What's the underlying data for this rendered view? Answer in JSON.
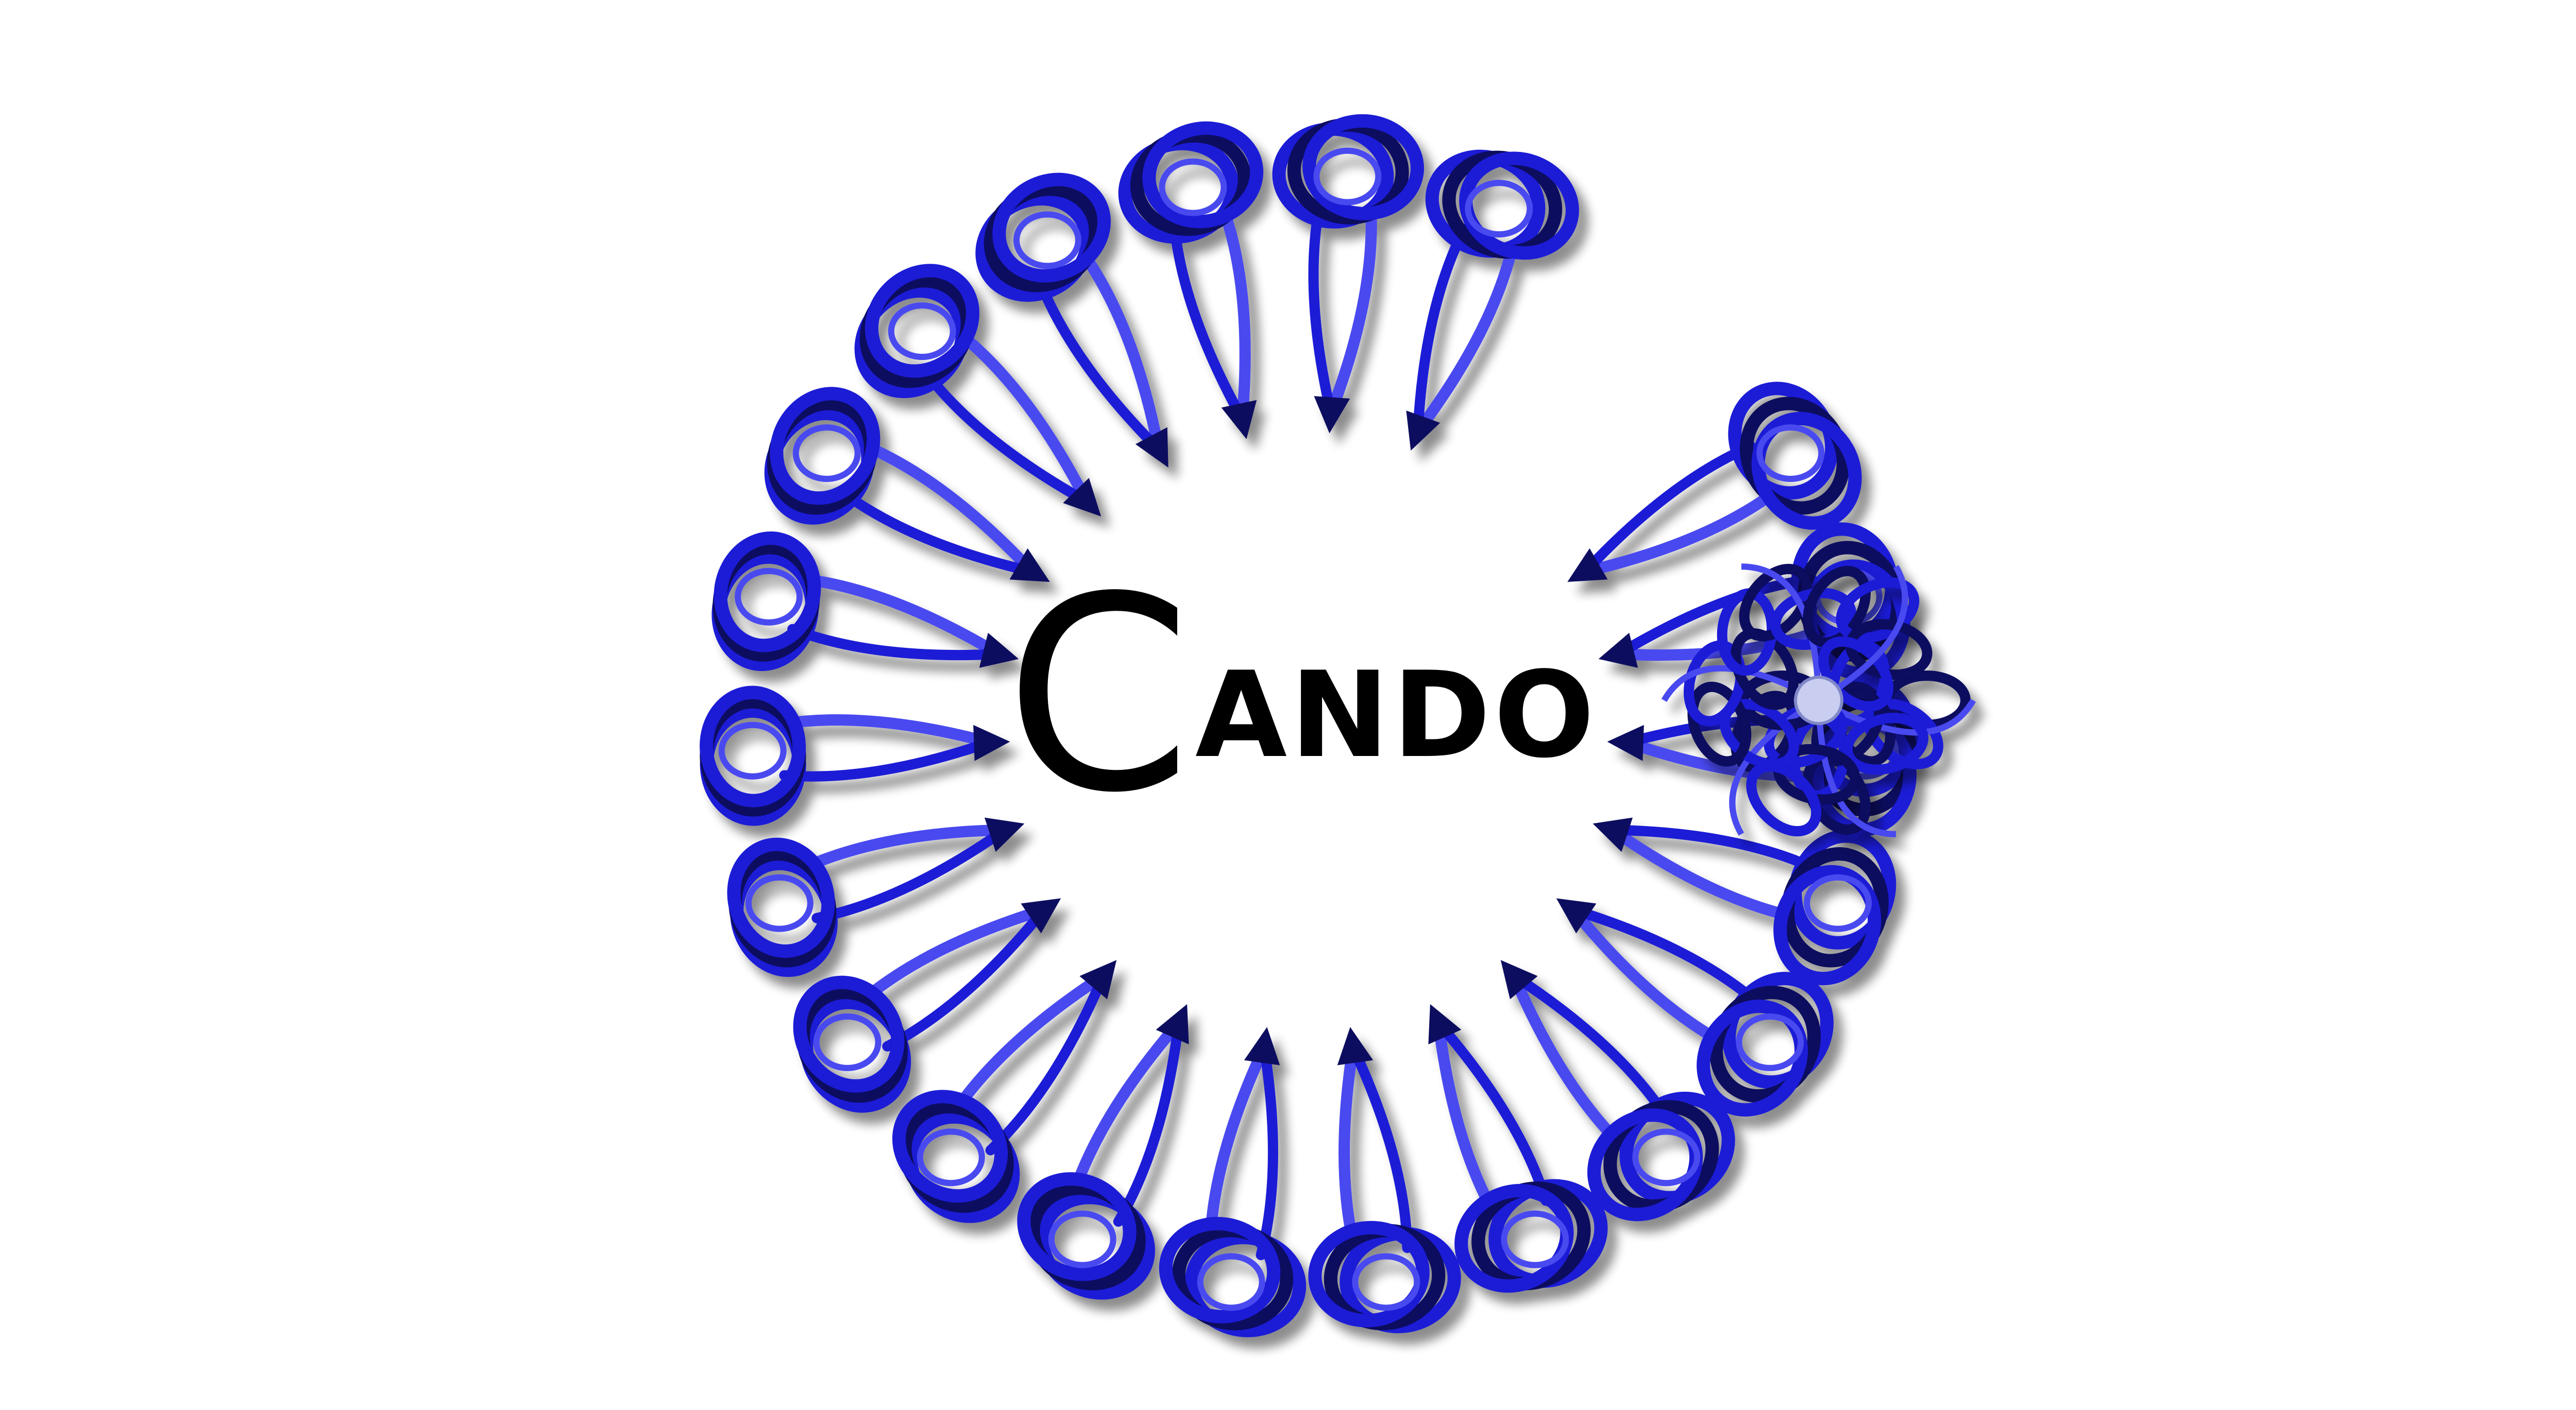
{
  "logo": {
    "first_letter": "C",
    "rest": "ANDO"
  },
  "colors": {
    "background": "#ffffff",
    "ribbon": "#1a1ad6",
    "ribbon_dark": "#07075e",
    "ribbon_light": "#4848f0",
    "text": "#000000"
  },
  "icons": {
    "ring": "protein-monomer-ring-illustration",
    "assembly": "protein-hexamer-assembly-illustration"
  }
}
